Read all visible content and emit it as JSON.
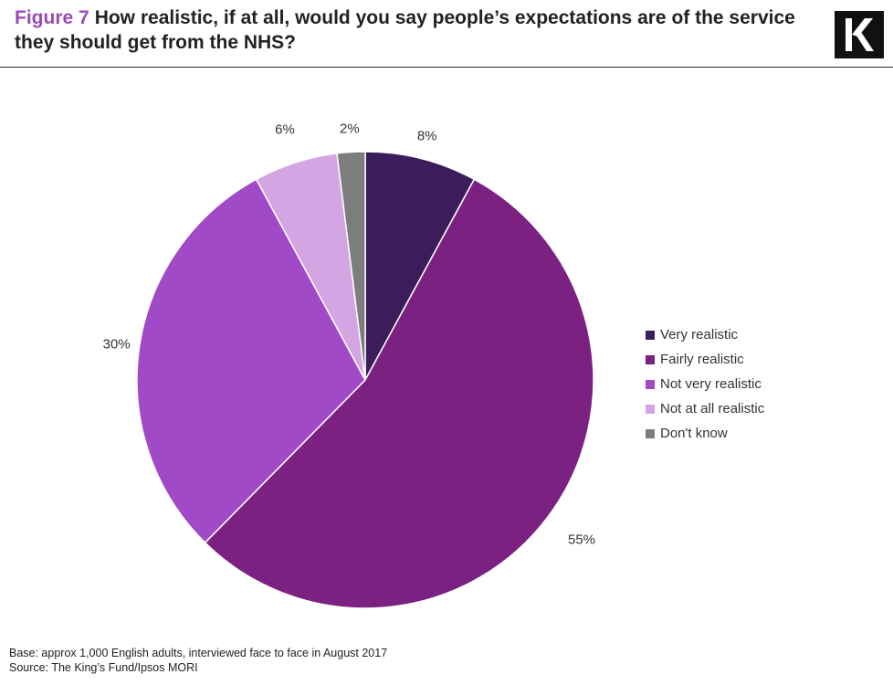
{
  "header": {
    "figure_label": "Figure 7",
    "title": "How realistic, if at all, would you say people’s expectations are of the service they should get from the NHS?",
    "logo_letter": "K"
  },
  "chart_data": {
    "type": "pie",
    "title": "How realistic, if at all, would you say people’s expectations are of the service they should get from the NHS?",
    "start_angle": "12 o'clock",
    "direction": "clockwise",
    "legend_position": "right",
    "slices": [
      {
        "name": "Very realistic",
        "value": 8,
        "label": "8%",
        "color": "#3a1d5a"
      },
      {
        "name": "Fairly realistic",
        "value": 55,
        "label": "55%",
        "color": "#7b2182"
      },
      {
        "name": "Not very realistic",
        "value": 30,
        "label": "30%",
        "color": "#a04ac7"
      },
      {
        "name": "Not at all realistic",
        "value": 6,
        "label": "6%",
        "color": "#d3a6e3"
      },
      {
        "name": "Don't know",
        "value": 2,
        "label": "2%",
        "color": "#7d7d7d"
      }
    ]
  },
  "footer": {
    "base": "Base: approx 1,000 English adults, interviewed face to face in August 2017",
    "source": "Source: The King’s Fund/Ipsos  MORI"
  }
}
